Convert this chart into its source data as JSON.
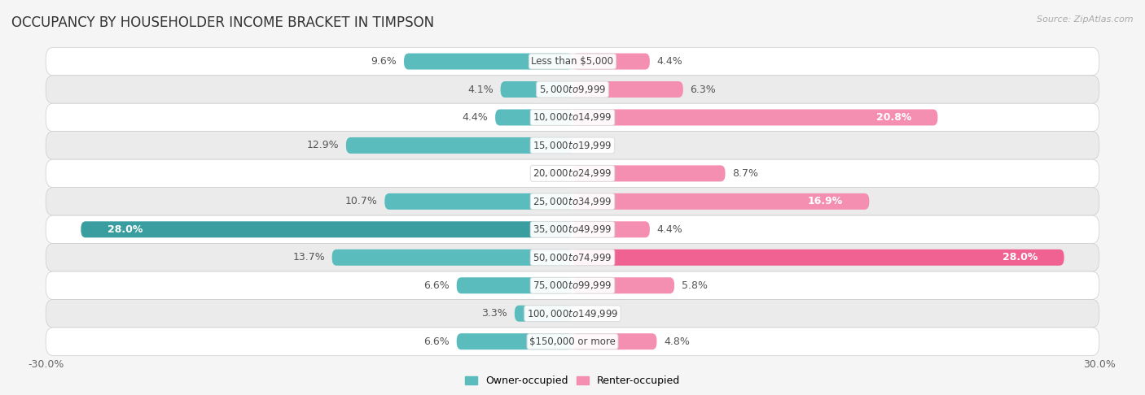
{
  "title": "OCCUPANCY BY HOUSEHOLDER INCOME BRACKET IN TIMPSON",
  "source": "Source: ZipAtlas.com",
  "categories": [
    "Less than $5,000",
    "$5,000 to $9,999",
    "$10,000 to $14,999",
    "$15,000 to $19,999",
    "$20,000 to $24,999",
    "$25,000 to $34,999",
    "$35,000 to $49,999",
    "$50,000 to $74,999",
    "$75,000 to $99,999",
    "$100,000 to $149,999",
    "$150,000 or more"
  ],
  "owner_values": [
    9.6,
    4.1,
    4.4,
    12.9,
    0.0,
    10.7,
    28.0,
    13.7,
    6.6,
    3.3,
    6.6
  ],
  "renter_values": [
    4.4,
    6.3,
    20.8,
    0.0,
    8.7,
    16.9,
    4.4,
    28.0,
    5.8,
    0.0,
    4.8
  ],
  "owner_color": "#5bbcbe",
  "owner_color_dark": "#3a9ea0",
  "renter_color": "#f48fb1",
  "renter_color_dark": "#f06292",
  "owner_label": "Owner-occupied",
  "renter_label": "Renter-occupied",
  "xlim": [
    -30,
    30
  ],
  "bar_height": 0.58,
  "background_color": "#f5f5f5",
  "row_bg_even": "#ffffff",
  "row_bg_odd": "#ebebeb",
  "title_fontsize": 12,
  "label_fontsize": 9,
  "category_fontsize": 8.5,
  "white_label_threshold": 15
}
